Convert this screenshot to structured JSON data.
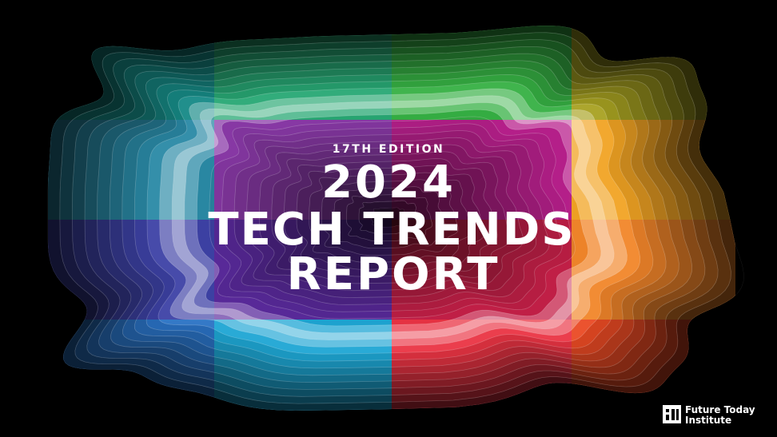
{
  "cover": {
    "edition": "17TH EDITION",
    "title_lines": [
      "2024",
      "TECH TRENDS",
      "REPORT"
    ]
  },
  "logo": {
    "lines": [
      "Future Today",
      "Institute"
    ]
  }
}
